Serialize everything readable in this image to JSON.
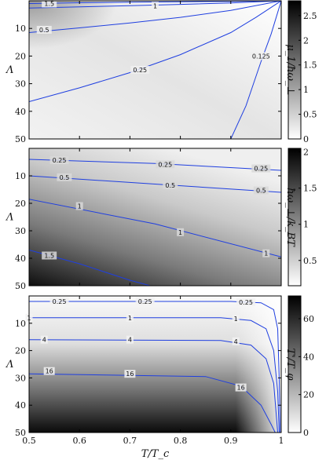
{
  "chart_data": [
    {
      "type": "heatmap",
      "panel": "top",
      "ylabel": "Λ",
      "colorbar_label": "μ_1/ħω_⊥",
      "colorbar_ticks": [
        0,
        0.5,
        1,
        1.5,
        2,
        2.5
      ],
      "colorbar_range": [
        0,
        2.8
      ],
      "x_range": [
        0.5,
        1
      ],
      "y_range": [
        0,
        50
      ],
      "y_ticks": [
        10,
        20,
        30,
        40,
        50
      ],
      "x_tick_labels_shown": false,
      "contour_lines": [
        {
          "level": "1.5",
          "points": [
            [
              0.5,
              1.0
            ],
            [
              0.6,
              0.7
            ],
            [
              0.7,
              0.5
            ],
            [
              0.8,
              0.35
            ],
            [
              0.9,
              0.2
            ],
            [
              1.0,
              0.0
            ]
          ],
          "label_at": [
            0.54,
            1.0
          ]
        },
        {
          "level": "1",
          "points": [
            [
              0.5,
              2.6
            ],
            [
              0.6,
              2.2
            ],
            [
              0.7,
              1.8
            ],
            [
              0.8,
              1.3
            ],
            [
              0.9,
              0.8
            ],
            [
              1.0,
              0.0
            ]
          ],
          "label_at": [
            0.75,
            1.8
          ]
        },
        {
          "level": "0.5",
          "points": [
            [
              0.5,
              11.5
            ],
            [
              0.6,
              9.8
            ],
            [
              0.7,
              8.0
            ],
            [
              0.8,
              6.0
            ],
            [
              0.9,
              3.5
            ],
            [
              1.0,
              0.0
            ]
          ],
          "label_at": [
            0.53,
            10.5
          ]
        },
        {
          "level": "0.25",
          "points": [
            [
              0.5,
              36.5
            ],
            [
              0.6,
              31.5
            ],
            [
              0.7,
              26.0
            ],
            [
              0.8,
              19.5
            ],
            [
              0.9,
              11.5
            ],
            [
              0.95,
              6.0
            ],
            [
              1.0,
              0.0
            ]
          ],
          "label_at": [
            0.72,
            25.0
          ]
        },
        {
          "level": "0.125",
          "points": [
            [
              0.9,
              50.0
            ],
            [
              0.93,
              38.0
            ],
            [
              0.96,
              22.0
            ],
            [
              0.98,
              12.0
            ],
            [
              1.0,
              0.0
            ]
          ],
          "label_at": [
            0.96,
            20.0
          ]
        }
      ],
      "contour_label_texts": [
        "1.5",
        "1",
        "0.5",
        "0.25",
        "0.125"
      ]
    },
    {
      "type": "heatmap",
      "panel": "middle",
      "ylabel": "Λ",
      "colorbar_label": "ħω_⊥/k_BT",
      "colorbar_ticks": [
        0.5,
        1,
        1.5,
        2
      ],
      "colorbar_range": [
        0.15,
        2.05
      ],
      "x_range": [
        0.5,
        1
      ],
      "y_range": [
        0,
        50
      ],
      "y_ticks": [
        10,
        20,
        30,
        40,
        50
      ],
      "x_tick_labels_shown": false,
      "contour_lines": [
        {
          "level": "0.25",
          "points": [
            [
              0.5,
              4.0
            ],
            [
              0.75,
              5.5
            ],
            [
              1.0,
              8.0
            ]
          ],
          "label_at": [
            0.56,
            4.3
          ]
        },
        {
          "level": "0.5",
          "points": [
            [
              0.5,
              10.0
            ],
            [
              0.75,
              13.0
            ],
            [
              1.0,
              16.0
            ]
          ],
          "label_at": [
            0.57,
            10.5
          ]
        },
        {
          "level": "1",
          "points": [
            [
              0.5,
              18.5
            ],
            [
              0.75,
              27.5
            ],
            [
              1.0,
              39.5
            ]
          ],
          "label_at": [
            0.6,
            21.0
          ]
        },
        {
          "level": "1.5",
          "points": [
            [
              0.5,
              37.0
            ],
            [
              0.6,
              42.0
            ],
            [
              0.7,
              48.0
            ],
            [
              0.74,
              50.0
            ]
          ],
          "label_at": [
            0.54,
            39.0
          ]
        }
      ],
      "contour_label_texts": [
        "0.25",
        "0.5",
        "1",
        "1.5"
      ],
      "extra_label_positions": [
        {
          "text": "0.25",
          "at": [
            0.77,
            5.8
          ]
        },
        {
          "text": "0.25",
          "at": [
            0.96,
            7.3
          ]
        },
        {
          "text": "0.5",
          "at": [
            0.78,
            13.4
          ]
        },
        {
          "text": "0.5",
          "at": [
            0.96,
            15.3
          ]
        },
        {
          "text": "1",
          "at": [
            0.8,
            30.5
          ]
        },
        {
          "text": "1",
          "at": [
            0.97,
            38.2
          ]
        }
      ]
    },
    {
      "type": "heatmap",
      "panel": "bottom",
      "ylabel": "Λ",
      "xlabel": "T/T_c",
      "colorbar_label": "T'/T_φ",
      "colorbar_ticks": [
        0,
        20,
        40,
        60
      ],
      "colorbar_range": [
        0,
        72
      ],
      "x_range": [
        0.5,
        1
      ],
      "x_ticks": [
        0.5,
        0.6,
        0.7,
        0.8,
        0.9,
        1
      ],
      "y_range": [
        0,
        50
      ],
      "y_ticks": [
        10,
        20,
        30,
        40,
        50
      ],
      "contour_lines": [
        {
          "level": "0.25",
          "points": [
            [
              0.5,
              2.0
            ],
            [
              0.9,
              2.0
            ],
            [
              0.96,
              2.5
            ],
            [
              0.985,
              5.0
            ],
            [
              0.993,
              12.0
            ],
            [
              0.996,
              30.0
            ],
            [
              0.998,
              50.0
            ]
          ],
          "label_at": [
            0.56,
            2.0
          ]
        },
        {
          "level": "1",
          "points": [
            [
              0.5,
              8.0
            ],
            [
              0.88,
              8.0
            ],
            [
              0.94,
              9.0
            ],
            [
              0.97,
              12.0
            ],
            [
              0.985,
              20.0
            ],
            [
              0.993,
              35.0
            ],
            [
              0.996,
              50.0
            ]
          ],
          "label_at": [
            0.5,
            8.0
          ]
        },
        {
          "level": "4",
          "points": [
            [
              0.5,
              16.0
            ],
            [
              0.88,
              16.3
            ],
            [
              0.94,
              18.0
            ],
            [
              0.97,
              23.0
            ],
            [
              0.985,
              32.0
            ],
            [
              0.993,
              50.0
            ]
          ],
          "label_at": [
            0.53,
            16.0
          ]
        },
        {
          "level": "16",
          "points": [
            [
              0.5,
              28.5
            ],
            [
              0.85,
              29.5
            ],
            [
              0.92,
              33.0
            ],
            [
              0.96,
              40.0
            ],
            [
              0.98,
              47.0
            ],
            [
              0.988,
              50.0
            ]
          ],
          "label_at": [
            0.54,
            27.5
          ]
        }
      ],
      "contour_label_texts": [
        "0.25",
        "1",
        "4",
        "16"
      ],
      "extra_label_positions": [
        {
          "text": "0.25",
          "at": [
            0.73,
            2.0
          ]
        },
        {
          "text": "0.25",
          "at": [
            0.93,
            2.3
          ]
        },
        {
          "text": "1",
          "at": [
            0.7,
            8.0
          ]
        },
        {
          "text": "1",
          "at": [
            0.91,
            8.3
          ]
        },
        {
          "text": "4",
          "at": [
            0.7,
            16.0
          ]
        },
        {
          "text": "4",
          "at": [
            0.91,
            16.6
          ]
        },
        {
          "text": "16",
          "at": [
            0.7,
            28.5
          ]
        },
        {
          "text": "16",
          "at": [
            0.92,
            33.5
          ]
        }
      ]
    }
  ]
}
